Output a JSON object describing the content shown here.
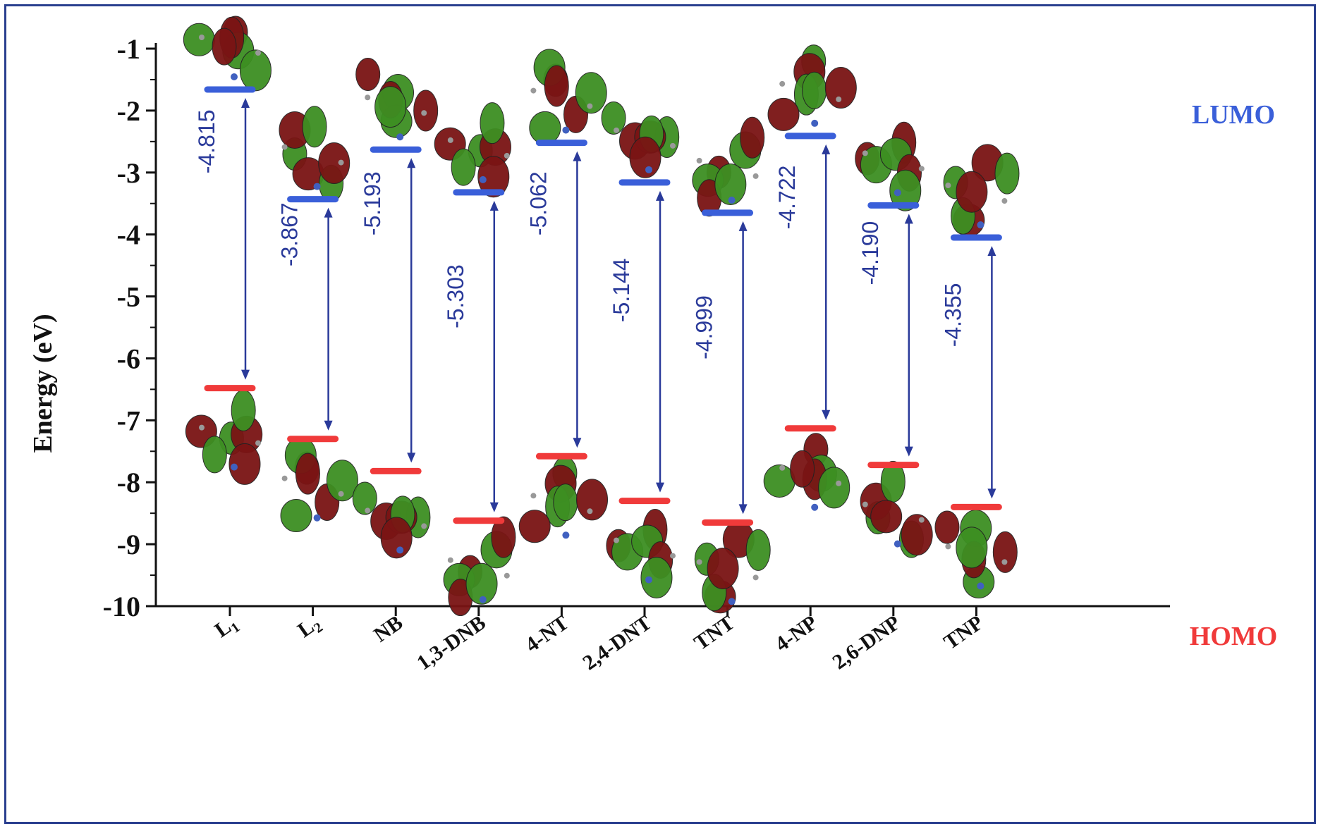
{
  "chart_data": {
    "type": "energy-level diagram",
    "ylabel": "Energy (eV)",
    "ylim": [
      -10,
      -1
    ],
    "yticks": [
      -1,
      -2,
      -3,
      -4,
      -5,
      -6,
      -7,
      -8,
      -9,
      -10
    ],
    "categories": [
      {
        "base": "L",
        "sub": "1"
      },
      {
        "base": "L",
        "sub": "2"
      },
      {
        "base": "NB",
        "sub": ""
      },
      {
        "base": "1,3-DNB",
        "sub": ""
      },
      {
        "base": "4-NT",
        "sub": ""
      },
      {
        "base": "2,4-DNT",
        "sub": ""
      },
      {
        "base": "TNT",
        "sub": ""
      },
      {
        "base": "4-NP",
        "sub": ""
      },
      {
        "base": "2,6-DNP",
        "sub": ""
      },
      {
        "base": "TNP",
        "sub": ""
      }
    ],
    "series": [
      {
        "name": "LUMO",
        "color": "#3a5fd9",
        "values": [
          -1.66,
          -3.43,
          -2.63,
          -3.32,
          -2.52,
          -3.16,
          -3.65,
          -2.41,
          -3.53,
          -4.05
        ]
      },
      {
        "name": "HOMO",
        "color": "#f03a3a",
        "values": [
          -6.48,
          -7.3,
          -7.82,
          -8.62,
          -7.58,
          -8.3,
          -8.65,
          -7.13,
          -7.72,
          -8.4
        ]
      }
    ],
    "gap_labels": [
      "-4.815",
      "-3.867",
      "-5.193",
      "-5.303",
      "-5.062",
      "-5.144",
      "-4.999",
      "-4.722",
      "-4.190",
      "-4.355"
    ],
    "gap_label_y": [
      -2.5,
      -4.0,
      -3.5,
      -5.0,
      -3.5,
      -4.9,
      -5.5,
      -3.4,
      -4.3,
      -5.3
    ],
    "arrow_color": "#2a3a9a"
  }
}
